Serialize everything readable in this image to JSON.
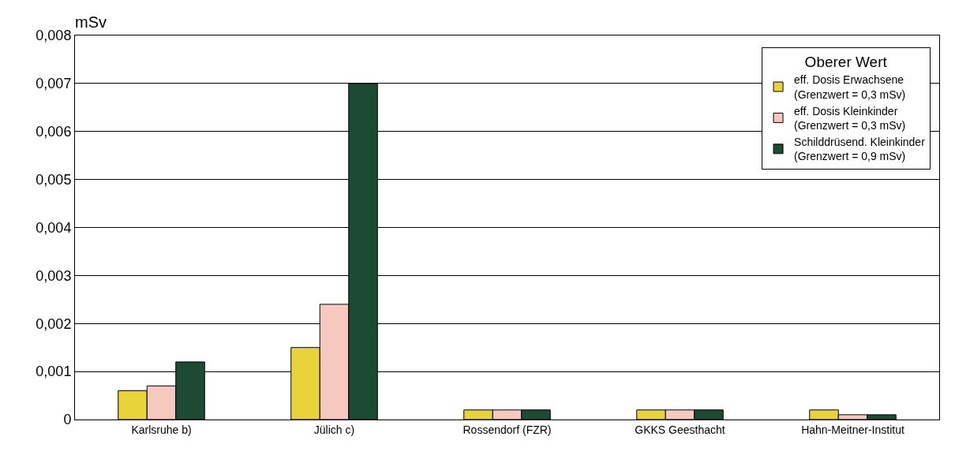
{
  "chart_data": {
    "type": "bar",
    "ylabel": "mSv",
    "legend_title": "Oberer Wert",
    "legend": "top right",
    "grid": "y",
    "categories": [
      "Karlsruhe b)",
      "Jülich c)",
      "Rossendorf (FZR)",
      "GKKS Geesthacht",
      "Hahn-Meitner-Institut"
    ],
    "ylim": [
      0,
      0.008
    ],
    "yticks": [
      {
        "value": 0,
        "label": "0"
      },
      {
        "value": 0.001,
        "label": "0,001"
      },
      {
        "value": 0.002,
        "label": "0,002"
      },
      {
        "value": 0.003,
        "label": "0,003"
      },
      {
        "value": 0.004,
        "label": "0,004"
      },
      {
        "value": 0.005,
        "label": "0,005"
      },
      {
        "value": 0.006,
        "label": "0,006"
      },
      {
        "value": 0.007,
        "label": "0,007"
      },
      {
        "value": 0.008,
        "label": "0,008"
      }
    ],
    "series": [
      {
        "name": "eff. Dosis Erwachsene\n(Grenzwert = 0,3 mSv)",
        "color": "#e8d43a",
        "values": [
          0.0006,
          0.0015,
          0.0002,
          0.0002,
          0.0002
        ]
      },
      {
        "name": "eff. Dosis Kleinkinder\n(Grenzwert = 0,3 mSv)",
        "color": "#f6c9c0",
        "values": [
          0.0007,
          0.0024,
          0.0002,
          0.0002,
          0.0001
        ]
      },
      {
        "name": "Schilddrüsend. Kleinkinder\n(Grenzwert = 0,9 mSv)",
        "color": "#1d4a33",
        "values": [
          0.0012,
          0.007,
          0.0002,
          0.0002,
          0.0001
        ]
      }
    ]
  }
}
